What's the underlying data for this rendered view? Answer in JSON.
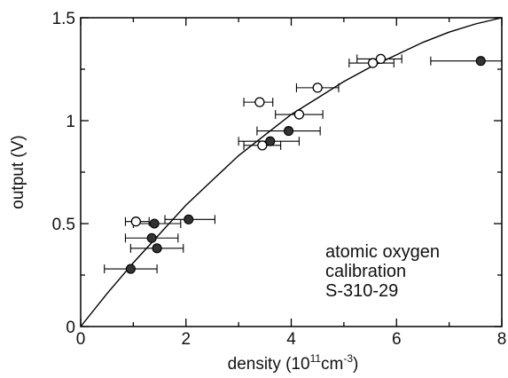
{
  "chart_data": {
    "type": "scatter",
    "title": "",
    "xlabel": {
      "base": "density (10",
      "sup1": "11",
      "mid": "cm",
      "sup2": "-3",
      "end": ")"
    },
    "ylabel": "output (V)",
    "xlim": [
      0,
      8
    ],
    "ylim": [
      0,
      1.5
    ],
    "x_ticks": [
      0,
      2,
      4,
      6,
      8
    ],
    "x_tick_labels": [
      "0",
      "2",
      "4",
      "6",
      "8"
    ],
    "y_ticks": [
      0,
      0.5,
      1,
      1.5
    ],
    "y_tick_labels": [
      "0",
      "0.5",
      "1",
      "1.5"
    ],
    "grid": false,
    "series": [
      {
        "marker": "open-circle",
        "points": [
          {
            "x": 1.05,
            "y": 0.51,
            "xerr": [
              0.85,
              1.3
            ]
          },
          {
            "x": 3.4,
            "y": 1.09,
            "xerr": [
              3.1,
              3.65
            ]
          },
          {
            "x": 4.5,
            "y": 1.16,
            "xerr": [
              4.1,
              4.9
            ]
          },
          {
            "x": 4.15,
            "y": 1.03,
            "xerr": [
              3.7,
              4.6
            ]
          },
          {
            "x": 3.45,
            "y": 0.88,
            "xerr": [
              3.1,
              3.8
            ]
          },
          {
            "x": 5.55,
            "y": 1.28,
            "xerr": [
              5.1,
              5.95
            ]
          },
          {
            "x": 5.7,
            "y": 1.3,
            "xerr": [
              5.25,
              6.1
            ]
          }
        ]
      },
      {
        "marker": "filled-circle",
        "points": [
          {
            "x": 0.95,
            "y": 0.28,
            "xerr": [
              0.45,
              1.45
            ]
          },
          {
            "x": 1.35,
            "y": 0.43,
            "xerr": [
              0.85,
              1.85
            ]
          },
          {
            "x": 1.45,
            "y": 0.38,
            "xerr": [
              0.95,
              1.95
            ]
          },
          {
            "x": 1.4,
            "y": 0.5,
            "xerr": [
              1.0,
              1.9
            ]
          },
          {
            "x": 2.05,
            "y": 0.52,
            "xerr": [
              1.6,
              2.55
            ]
          },
          {
            "x": 3.6,
            "y": 0.9,
            "xerr": [
              3.0,
              4.15
            ]
          },
          {
            "x": 3.95,
            "y": 0.95,
            "xerr": [
              3.35,
              4.55
            ]
          },
          {
            "x": 7.6,
            "y": 1.29,
            "xerr": [
              6.65,
              8.0
            ]
          }
        ]
      }
    ],
    "fit_curve": {
      "style": "solid",
      "points": [
        {
          "x": 0,
          "y": 0
        },
        {
          "x": 0.5,
          "y": 0.16
        },
        {
          "x": 1,
          "y": 0.31
        },
        {
          "x": 1.5,
          "y": 0.45
        },
        {
          "x": 2,
          "y": 0.59
        },
        {
          "x": 2.5,
          "y": 0.71
        },
        {
          "x": 3,
          "y": 0.83
        },
        {
          "x": 3.5,
          "y": 0.93
        },
        {
          "x": 4,
          "y": 1.03
        },
        {
          "x": 4.5,
          "y": 1.11
        },
        {
          "x": 5,
          "y": 1.19
        },
        {
          "x": 5.5,
          "y": 1.26
        },
        {
          "x": 6,
          "y": 1.32
        },
        {
          "x": 6.5,
          "y": 1.38
        },
        {
          "x": 7,
          "y": 1.43
        },
        {
          "x": 7.5,
          "y": 1.47
        },
        {
          "x": 8,
          "y": 1.5
        }
      ]
    },
    "annotation_lines": [
      "atomic oxygen",
      "calibration",
      "S-310-29"
    ]
  }
}
